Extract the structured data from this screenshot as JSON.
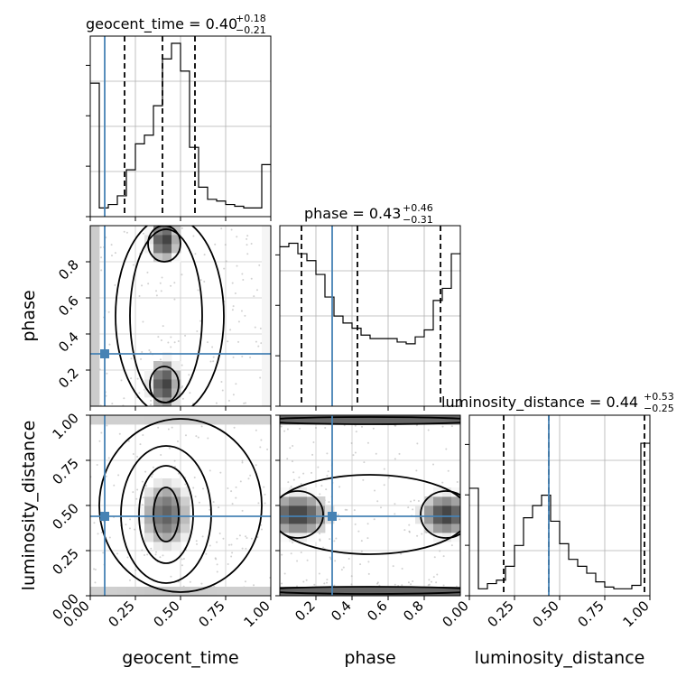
{
  "chart_data": {
    "type": "corner",
    "parameters": [
      "geocent_time",
      "phase",
      "luminosity_distance"
    ],
    "truths": {
      "geocent_time": 0.08,
      "phase": 0.29,
      "luminosity_distance": 0.44
    },
    "titles": [
      {
        "main": "geocent_time = 0.40",
        "sup": "+0.18",
        "sub": "−0.21"
      },
      {
        "main": "phase = 0.43",
        "sup": "+0.46",
        "sub": "−0.31"
      },
      {
        "main": "luminosity_distance = 0.44",
        "sup": "+0.53",
        "sub": "−0.25"
      }
    ],
    "quantiles": {
      "geocent_time": [
        0.19,
        0.4,
        0.58
      ],
      "phase": [
        0.12,
        0.43,
        0.89
      ],
      "luminosity_distance": [
        0.19,
        0.44,
        0.97
      ]
    },
    "axes": {
      "geocent_time": {
        "range": [
          0,
          1
        ],
        "ticks": [
          0.0,
          0.25,
          0.5,
          0.75,
          1.0
        ],
        "tick_labels": [
          "0.00",
          "0.25",
          "0.50",
          "0.75",
          "1.00"
        ]
      },
      "phase": {
        "range": [
          0,
          1
        ],
        "ticks": [
          0.2,
          0.4,
          0.6,
          0.8
        ],
        "tick_labels": [
          "0.2",
          "0.4",
          "0.6",
          "0.8"
        ]
      },
      "luminosity_distance": {
        "range": [
          0,
          1
        ],
        "ticks": [
          0.0,
          0.25,
          0.5,
          0.75,
          1.0
        ],
        "tick_labels": [
          "0.00",
          "0.25",
          "0.50",
          "0.75",
          "1.00"
        ]
      }
    },
    "histograms": {
      "geocent_time": [
        0.77,
        0.05,
        0.07,
        0.12,
        0.27,
        0.42,
        0.47,
        0.64,
        0.91,
        1.0,
        0.84,
        0.4,
        0.17,
        0.1,
        0.09,
        0.07,
        0.06,
        0.05,
        0.05,
        0.3
      ],
      "phase": [
        0.92,
        0.94,
        0.88,
        0.84,
        0.76,
        0.63,
        0.52,
        0.48,
        0.45,
        0.41,
        0.39,
        0.39,
        0.39,
        0.37,
        0.36,
        0.4,
        0.44,
        0.61,
        0.68,
        0.88
      ],
      "luminosity_distance": [
        0.62,
        0.04,
        0.07,
        0.09,
        0.17,
        0.29,
        0.45,
        0.52,
        0.58,
        0.43,
        0.3,
        0.21,
        0.17,
        0.13,
        0.08,
        0.05,
        0.04,
        0.04,
        0.06,
        0.88
      ]
    },
    "grid": true,
    "truth_color": "#4682b4"
  }
}
